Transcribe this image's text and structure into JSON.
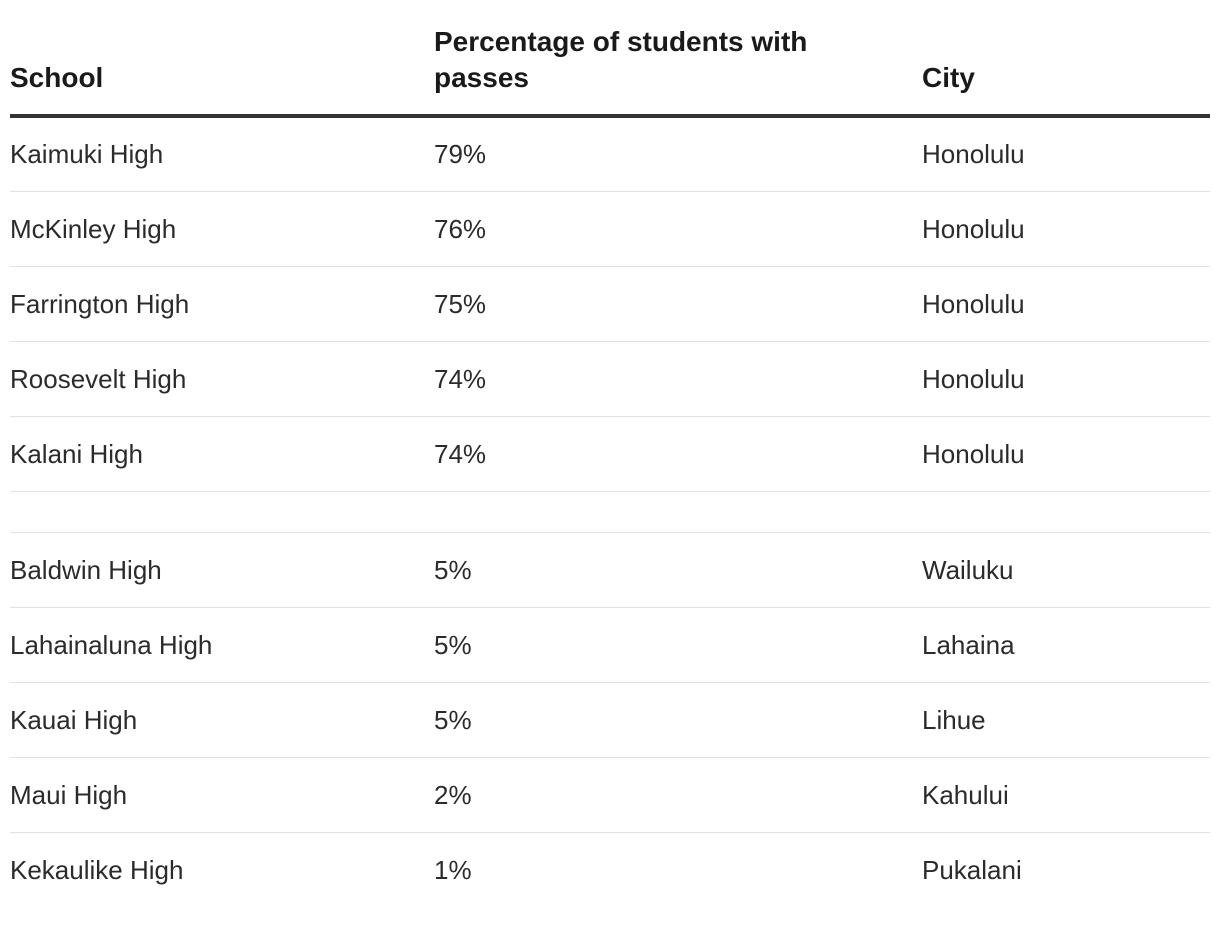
{
  "table": {
    "headers": {
      "school": "School",
      "percentage": "Percentage of students with passes",
      "city": "City"
    },
    "top_rows": [
      {
        "school": "Kaimuki High",
        "percentage": "79%",
        "city": "Honolulu"
      },
      {
        "school": "McKinley High",
        "percentage": "76%",
        "city": "Honolulu"
      },
      {
        "school": "Farrington High",
        "percentage": "75%",
        "city": "Honolulu"
      },
      {
        "school": "Roosevelt High",
        "percentage": "74%",
        "city": "Honolulu"
      },
      {
        "school": "Kalani High",
        "percentage": "74%",
        "city": "Honolulu"
      }
    ],
    "bottom_rows": [
      {
        "school": "Baldwin High",
        "percentage": "5%",
        "city": "Wailuku"
      },
      {
        "school": "Lahainaluna High",
        "percentage": "5%",
        "city": "Lahaina"
      },
      {
        "school": "Kauai High",
        "percentage": "5%",
        "city": "Lihue"
      },
      {
        "school": "Maui High",
        "percentage": "2%",
        "city": "Kahului"
      },
      {
        "school": "Kekaulike High",
        "percentage": "1%",
        "city": "Pukalani"
      }
    ]
  }
}
